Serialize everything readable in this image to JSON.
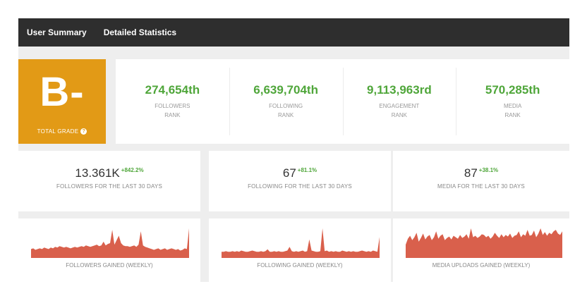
{
  "nav": {
    "tabs": [
      {
        "label": "User Summary"
      },
      {
        "label": "Detailed Statistics"
      }
    ]
  },
  "grade": {
    "value": "B-",
    "label": "TOTAL GRADE",
    "help_icon": "?"
  },
  "ranks": [
    {
      "value": "274,654th",
      "label1": "FOLLOWERS",
      "label2": "RANK"
    },
    {
      "value": "6,639,704th",
      "label1": "FOLLOWING",
      "label2": "RANK"
    },
    {
      "value": "9,113,963rd",
      "label1": "ENGAGEMENT",
      "label2": "RANK"
    },
    {
      "value": "570,285th",
      "label1": "MEDIA",
      "label2": "RANK"
    }
  ],
  "stats": [
    {
      "value": "13.361K",
      "change": "+842.2%",
      "label": "FOLLOWERS FOR THE LAST 30 DAYS"
    },
    {
      "value": "67",
      "change": "+81.1%",
      "label": "FOLLOWING FOR THE LAST 30 DAYS"
    },
    {
      "value": "87",
      "change": "+38.1%",
      "label": "MEDIA FOR THE LAST 30 DAYS"
    }
  ],
  "colors": {
    "grade_bg": "#e29a16",
    "rank_green": "#4fa63a",
    "chart_fill": "#d9604c",
    "topbar_bg": "#2e2e2e"
  },
  "chart_data": [
    {
      "type": "area",
      "title": "FOLLOWERS GAINED (WEEKLY)",
      "values": [
        12,
        13,
        11,
        12,
        13,
        12,
        14,
        13,
        12,
        14,
        13,
        15,
        14,
        16,
        15,
        14,
        15,
        14,
        13,
        14,
        15,
        14,
        15,
        16,
        15,
        17,
        16,
        15,
        16,
        17,
        18,
        16,
        17,
        22,
        17,
        19,
        20,
        38,
        18,
        24,
        30,
        20,
        17,
        16,
        16,
        15,
        16,
        17,
        15,
        18,
        36,
        17,
        15,
        14,
        13,
        12,
        11,
        12,
        13,
        11,
        12,
        13,
        11,
        12,
        13,
        12,
        11,
        12,
        10,
        11,
        13,
        12,
        40
      ]
    },
    {
      "type": "area",
      "title": "FOLLOWING GAINED (WEEKLY)",
      "values": [
        10,
        10,
        11,
        10,
        10,
        11,
        10,
        11,
        10,
        12,
        11,
        10,
        10,
        11,
        12,
        11,
        10,
        10,
        11,
        10,
        11,
        14,
        10,
        10,
        11,
        10,
        11,
        10,
        10,
        11,
        12,
        18,
        11,
        10,
        11,
        10,
        11,
        12,
        10,
        11,
        30,
        12,
        11,
        10,
        10,
        11,
        48,
        11,
        12,
        10,
        11,
        10,
        11,
        10,
        10,
        12,
        11,
        10,
        11,
        10,
        11,
        10,
        10,
        11,
        12,
        11,
        10,
        11,
        10,
        12,
        11,
        10,
        34
      ]
    },
    {
      "type": "area",
      "title": "MEDIA UPLOADS GAINED (WEEKLY)",
      "values": [
        18,
        26,
        30,
        24,
        28,
        34,
        22,
        27,
        33,
        25,
        29,
        31,
        24,
        28,
        36,
        26,
        30,
        32,
        24,
        27,
        29,
        25,
        30,
        28,
        26,
        31,
        27,
        29,
        32,
        26,
        40,
        28,
        30,
        27,
        29,
        32,
        31,
        28,
        30,
        26,
        29,
        34,
        30,
        27,
        32,
        28,
        31,
        29,
        33,
        27,
        30,
        31,
        36,
        28,
        32,
        30,
        38,
        30,
        31,
        37,
        28,
        33,
        40,
        31,
        35,
        30,
        34,
        32,
        36,
        38,
        33,
        31,
        36
      ]
    }
  ]
}
